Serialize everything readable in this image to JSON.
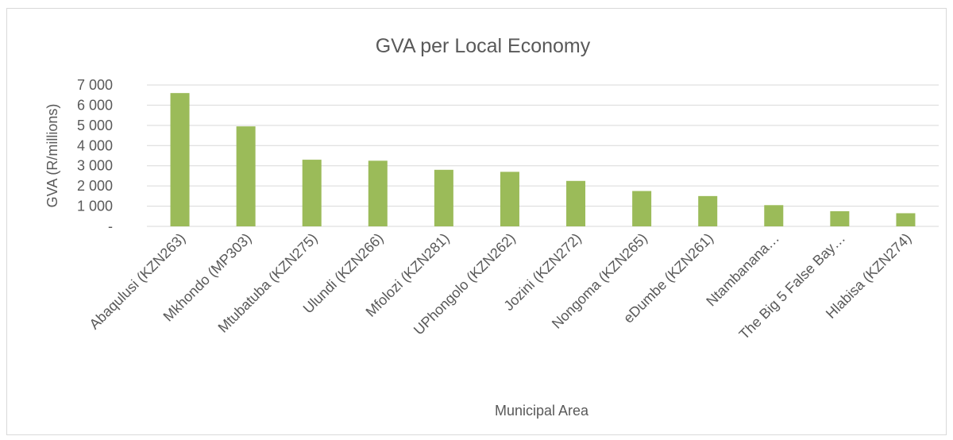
{
  "chart_data": {
    "type": "bar",
    "title": "GVA per Local Economy",
    "x_label": "Municipal Area",
    "y_label": "GVA (R/millions)",
    "categories": [
      "Abaqulusi (KZN263)",
      "Mkhondo (MP303)",
      "Mtubatuba (KZN275)",
      "Ulundi (KZN266)",
      "Mfolozi (KZN281)",
      "UPhongolo (KZN262)",
      "Jozini (KZN272)",
      "Nongoma (KZN265)",
      "eDumbe (KZN261)",
      "Ntambanana…",
      "The Big 5 False Bay…",
      "Hlabisa (KZN274)"
    ],
    "values": [
      6600,
      4950,
      3300,
      3250,
      2800,
      2700,
      2250,
      1750,
      1500,
      1050,
      750,
      650
    ],
    "color": "#9bbb59",
    "ylim": [
      0,
      7000
    ],
    "yticks": [
      {
        "value": 0,
        "label": "-"
      },
      {
        "value": 1000,
        "label": "1 000"
      },
      {
        "value": 2000,
        "label": "2 000"
      },
      {
        "value": 3000,
        "label": "3 000"
      },
      {
        "value": 4000,
        "label": "4 000"
      },
      {
        "value": 5000,
        "label": "5 000"
      },
      {
        "value": 6000,
        "label": "6 000"
      },
      {
        "value": 7000,
        "label": "7 000"
      }
    ],
    "grid": true
  }
}
